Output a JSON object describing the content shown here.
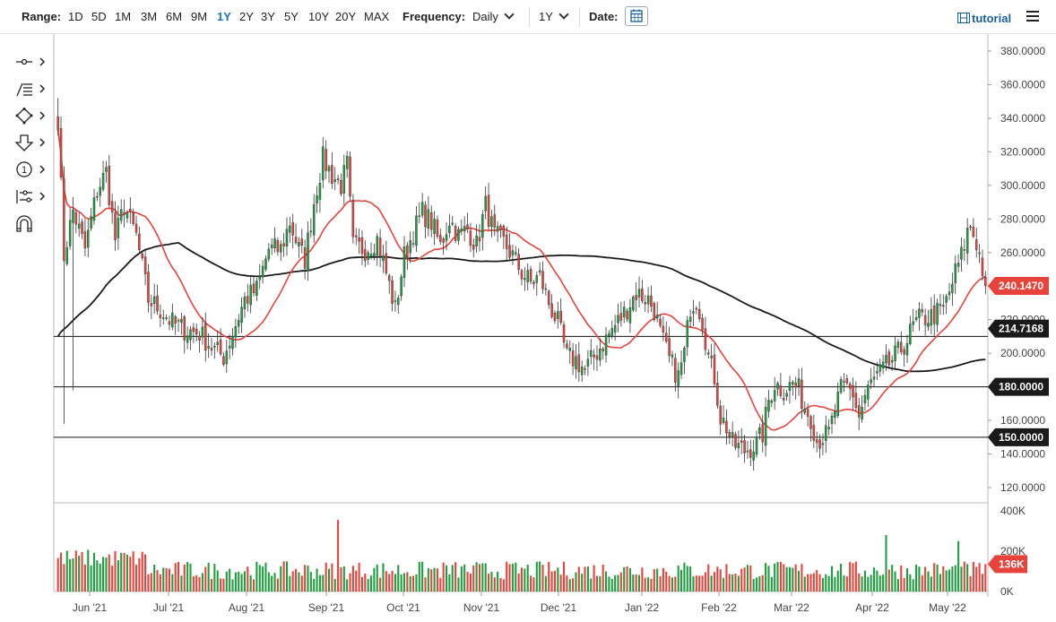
{
  "toolbar": {
    "range_label": "Range:",
    "ranges": [
      "1D",
      "5D",
      "1M",
      "3M",
      "6M",
      "9M",
      "1Y",
      "2Y",
      "3Y",
      "5Y",
      "10Y",
      "20Y",
      "MAX"
    ],
    "active_range": "1Y",
    "frequency_label": "Frequency:",
    "frequency_value": "Daily",
    "period_value": "1Y",
    "date_label": "Date:",
    "tutorial_label": "tutorial"
  },
  "left_tools": [
    "crosshair-tool-icon",
    "fib-tool-icon",
    "shapes-tool-icon",
    "arrow-tool-icon",
    "counter-tool-icon",
    "measure-tool-icon",
    "magnet-tool-icon"
  ],
  "chart_data": {
    "type": "candlestick",
    "x_labels": [
      "Jun '21",
      "Jul '21",
      "Aug '21",
      "Sep '21",
      "Oct '21",
      "Nov '21",
      "Dec '21",
      "Jan '22",
      "Feb '22",
      "Mar '22",
      "Apr '22",
      "May '22"
    ],
    "y_ticks": [
      "380.0000",
      "360.0000",
      "340.0000",
      "320.0000",
      "300.0000",
      "280.0000",
      "260.0000",
      "240.0000",
      "220.0000",
      "200.0000",
      "180.0000",
      "160.0000",
      "140.0000",
      "120.0000"
    ],
    "ylim": [
      112,
      388
    ],
    "price_tags": [
      {
        "value": 240.147,
        "label": "240.1470",
        "color": "#e8433a"
      },
      {
        "value": 214.7168,
        "label": "214.7168",
        "color": "#1a1a1a"
      },
      {
        "value": 180,
        "label": "180.0000",
        "color": "#1a1a1a"
      },
      {
        "value": 150,
        "label": "150.0000",
        "color": "#1a1a1a"
      }
    ],
    "horizontal_lines": [
      210,
      180,
      150
    ],
    "up_color": "#1e9e3e",
    "down_color": "#e8433a",
    "ma_fast_color": "#e8433a",
    "ma_slow_color": "#1a1a1a",
    "anchors": [
      [
        0,
        340
      ],
      [
        2,
        258
      ],
      [
        5,
        285
      ],
      [
        9,
        262
      ],
      [
        13,
        297
      ],
      [
        16,
        308
      ],
      [
        19,
        268
      ],
      [
        22,
        288
      ],
      [
        26,
        270
      ],
      [
        30,
        232
      ],
      [
        34,
        226
      ],
      [
        38,
        218
      ],
      [
        42,
        214
      ],
      [
        47,
        212
      ],
      [
        52,
        202
      ],
      [
        55,
        198
      ],
      [
        58,
        212
      ],
      [
        62,
        232
      ],
      [
        66,
        238
      ],
      [
        70,
        262
      ],
      [
        74,
        262
      ],
      [
        77,
        278
      ],
      [
        80,
        262
      ],
      [
        82,
        256
      ],
      [
        85,
        290
      ],
      [
        88,
        316
      ],
      [
        91,
        306
      ],
      [
        94,
        300
      ],
      [
        96,
        312
      ],
      [
        98,
        264
      ],
      [
        102,
        262
      ],
      [
        106,
        268
      ],
      [
        109,
        248
      ],
      [
        112,
        226
      ],
      [
        115,
        258
      ],
      [
        118,
        272
      ],
      [
        121,
        284
      ],
      [
        124,
        278
      ],
      [
        127,
        264
      ],
      [
        130,
        280
      ],
      [
        133,
        270
      ],
      [
        136,
        274
      ],
      [
        139,
        264
      ],
      [
        142,
        288
      ],
      [
        145,
        270
      ],
      [
        148,
        266
      ],
      [
        151,
        258
      ],
      [
        154,
        248
      ],
      [
        157,
        242
      ],
      [
        160,
        246
      ],
      [
        163,
        230
      ],
      [
        166,
        218
      ],
      [
        169,
        198
      ],
      [
        172,
        196
      ],
      [
        175,
        190
      ],
      [
        178,
        198
      ],
      [
        181,
        206
      ],
      [
        184,
        214
      ],
      [
        188,
        224
      ],
      [
        192,
        236
      ],
      [
        196,
        232
      ],
      [
        198,
        226
      ],
      [
        200,
        212
      ],
      [
        203,
        196
      ],
      [
        206,
        186
      ],
      [
        208,
        200
      ],
      [
        210,
        228
      ],
      [
        212,
        232
      ],
      [
        214,
        220
      ],
      [
        216,
        198
      ],
      [
        218,
        186
      ],
      [
        220,
        162
      ],
      [
        222,
        156
      ],
      [
        224,
        146
      ],
      [
        228,
        142
      ],
      [
        232,
        146
      ],
      [
        234,
        152
      ],
      [
        236,
        172
      ],
      [
        238,
        182
      ],
      [
        241,
        178
      ],
      [
        244,
        182
      ],
      [
        246,
        178
      ],
      [
        248,
        168
      ],
      [
        250,
        162
      ],
      [
        252,
        148
      ],
      [
        254,
        150
      ],
      [
        256,
        152
      ],
      [
        258,
        166
      ],
      [
        260,
        178
      ],
      [
        262,
        180
      ],
      [
        264,
        176
      ],
      [
        266,
        162
      ],
      [
        268,
        174
      ],
      [
        270,
        182
      ],
      [
        273,
        188
      ],
      [
        276,
        194
      ],
      [
        279,
        200
      ],
      [
        282,
        208
      ],
      [
        284,
        216
      ],
      [
        286,
        220
      ],
      [
        290,
        222
      ],
      [
        294,
        226
      ],
      [
        296,
        236
      ],
      [
        298,
        248
      ],
      [
        300,
        258
      ],
      [
        302,
        272
      ],
      [
        303,
        276
      ],
      [
        305,
        266
      ],
      [
        307,
        250
      ],
      [
        308,
        240.15
      ]
    ],
    "volume_ticks": [
      "400K",
      "200K",
      "0K"
    ],
    "volume_max": 400,
    "volume_last_label": "136K"
  }
}
